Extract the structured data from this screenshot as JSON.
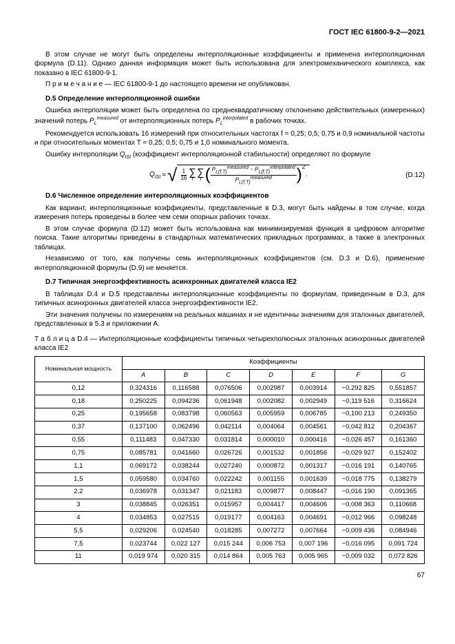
{
  "header": "ГОСТ IEC 61800-9-2—2021",
  "para1": "В этом случае не могут быть определены интерполяционные коэффициенты и применена интерполяционная формула (D.11). Однако данная информация может быть использована для электромеханического комплекса, как показано в IEC 61800-9-1.",
  "noteLabel": "П р и м е ч а н и е",
  "noteText": " — IEC 61800-9-1 до настоящего времени не опубликован.",
  "d5": {
    "heading": "D.5  Определение интерполяционной ошибки",
    "p1a": "Ошибка интерполяции может быть определена по среднеквадратичному отклонению действительных (измеренных) значений потерь ",
    "p1b": " от интерполяционных потерь ",
    "p1c": " в рабочих точках.",
    "p2": "Рекомендуется использовать 16 измерений при относительных частотах f = 0,25; 0,5; 0,75 и 0,9 номинальной частоты и при относительных моментах T = 0,25; 0,5; 0,75 и 1,0 номинального момента.",
    "p3a": "Ошибку интерполяции ",
    "p3b": " (коэффициент интерполяционной стабильности) определяют по формуле"
  },
  "formula": {
    "lhs": "Q",
    "lhsSub": "ISI",
    "eq": " = ",
    "fracTop": "1",
    "fracBot": "16",
    "sum1": "f",
    "sum2": "T",
    "innerTop": "P_L(f,T)^measured − P_L(f,T)^interpolated",
    "innerBot": "P_L(f,T)^measured",
    "power": "2",
    "number": "(D.12)"
  },
  "d6": {
    "heading": "D.6  Численное определение интерполяционных коэффициентов",
    "p1": "Как вариант, интерполяционные коэффициенты, представленные в D.3, могут быть найдены в том случае, когда измерения потерь проведены в более чем семи опорных рабочих точках.",
    "p2": "В этом случае формула (D.12) может быть использована как минимизируемая функция в цифровом алгоритме поиска. Такие алгоритмы приведены в стандартных математических прикладных программах, а также в электронных таблицах.",
    "p3": "Независимо от того, как получены семь интерполяционных коэффициентов (см. D.3 и D.6), применение интерполяционной формулы (D.9) не меняется."
  },
  "d7": {
    "heading": "D.7  Типичная энергоэффективность асинхронных двигателей класса IE2",
    "p1": "В таблицах D.4 и D.5 представлены интерполяционные коэффициенты по формулам, приведенным в D.3, для типичных асинхронных двигателей класса энергоэффективности IE2.",
    "p2": "Эти значения получены по измерениям на реальных машинах и не идентичны значениям для эталонных двигателей, представленных в 5.3 и приложении A."
  },
  "tableCaption": {
    "label": "Т а б л и ц а",
    "rest": "  D.4 — Интерполяционные коэффициенты типичных четырехполюсных эталонных асинхронных двигателей класса IE2"
  },
  "table": {
    "colHeader0": "Номинальная мощность",
    "groupHeader": "Коэффициенты",
    "cols": [
      "A",
      "B",
      "C",
      "D",
      "E",
      "F",
      "G"
    ],
    "rows": [
      [
        "0,12",
        "0,324316",
        "0,116588",
        "0,076506",
        "0,002987",
        "0,003914",
        "−0,292 825",
        "0,551857"
      ],
      [
        "0,18",
        "0,250225",
        "0,094236",
        "0,061948",
        "0,002082",
        "0,002949",
        "−0,119 516",
        "0,316624"
      ],
      [
        "0,25",
        "0,195658",
        "0,083798",
        "0,060563",
        "0,005959",
        "0,006785",
        "−0,100 213",
        "0,249350"
      ],
      [
        "0,37",
        "0,137100",
        "0,062496",
        "0,042114",
        "0,004064",
        "0,004561",
        "−0,042 812",
        "0,204367"
      ],
      [
        "0,55",
        "0,111483",
        "0,047330",
        "0,031814",
        "0,000010",
        "0,000416",
        "−0,026 457",
        "0,161360"
      ],
      [
        "0,75",
        "0,085781",
        "0,041660",
        "0,026726",
        "0,001532",
        "0,001856",
        "−0,029 927",
        "0,152402"
      ],
      [
        "1,1",
        "0,069172",
        "0,038244",
        "0,027240",
        "0,000872",
        "0,001317",
        "−0,016 191",
        "0,140765"
      ],
      [
        "1,5",
        "0,059580",
        "0,034760",
        "0,022242",
        "0,001155",
        "0,001639",
        "−0,018 775",
        "0,138279"
      ],
      [
        "2,2",
        "0,036978",
        "0,031347",
        "0,021183",
        "0,009877",
        "0,008447",
        "−0,016 190",
        "0,091365"
      ],
      [
        "3",
        "0,038845",
        "0,026351",
        "0,015957",
        "0,004417",
        "0,004606",
        "−0,008 363",
        "0,110668"
      ],
      [
        "4",
        "0,034853",
        "0,027515",
        "0,019177",
        "0,004163",
        "0,004691",
        "−0,012 966",
        "0,098248"
      ],
      [
        "5,5",
        "0,029206",
        "0,024540",
        "0,018285",
        "0,007272",
        "0,007664",
        "−0,009 436",
        "0,084946"
      ],
      [
        "7,5",
        "0,023744",
        "0,022 127",
        "0,015 244",
        "0,006 753",
        "0,007 196",
        "−0,016 095",
        "0,091 724"
      ],
      [
        "11",
        "0,019 974",
        "0,020 315",
        "0,014 864",
        "0,005 763",
        "0,005 965",
        "−0,009 032",
        "0,072 826"
      ]
    ]
  },
  "pageNumber": "67"
}
